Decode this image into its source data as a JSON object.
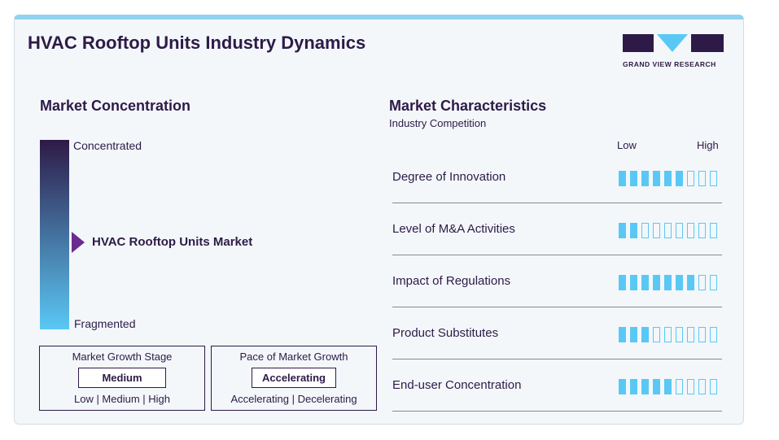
{
  "title": "HVAC Rooftop Units Industry Dynamics",
  "logo": {
    "text": "GRAND VIEW RESEARCH"
  },
  "concentration": {
    "heading": "Market Concentration",
    "top": "Concentrated",
    "bottom": "Fragmented",
    "marker": "HVAC Rooftop Units Market"
  },
  "growth_stage": {
    "title": "Market Growth Stage",
    "value": "Medium",
    "options": "Low | Medium | High"
  },
  "pace": {
    "title": "Pace of Market Growth",
    "value": "Accelerating",
    "options": "Accelerating | Decelerating"
  },
  "characteristics": {
    "heading": "Market Characteristics",
    "sub": "Industry Competition",
    "low": "Low",
    "high": "High",
    "rows": [
      {
        "name": "Degree of Innovation",
        "level": 6,
        "max": 9
      },
      {
        "name": "Level of M&A Activities",
        "level": 2,
        "max": 9
      },
      {
        "name": "Impact of Regulations",
        "level": 7,
        "max": 9
      },
      {
        "name": "Product Substitutes",
        "level": 3,
        "max": 9
      },
      {
        "name": "End-user Concentration",
        "level": 5,
        "max": 9
      }
    ]
  },
  "colors": {
    "primary": "#2e1a47",
    "accent": "#5ac8f5"
  }
}
